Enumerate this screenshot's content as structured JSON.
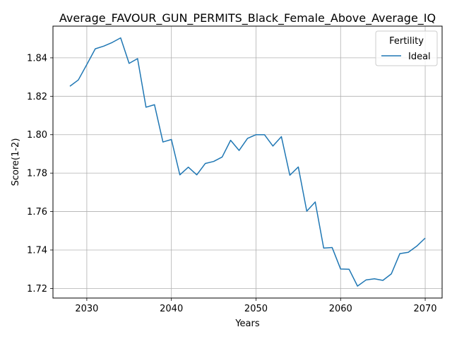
{
  "chart_data": {
    "type": "line",
    "title": "Average_FAVOUR_GUN_PERMITS_Black_Female_Above_Average_IQ",
    "xlabel": "Years",
    "ylabel": "Score(1-2)",
    "xlim": [
      2026,
      2072
    ],
    "ylim": [
      1.715,
      1.8565
    ],
    "xticks": [
      2030,
      2040,
      2050,
      2060,
      2070
    ],
    "yticks": [
      1.72,
      1.74,
      1.76,
      1.78,
      1.8,
      1.82,
      1.84
    ],
    "ytick_labels": [
      "1.72",
      "1.74",
      "1.76",
      "1.78",
      "1.80",
      "1.82",
      "1.84"
    ],
    "grid": true,
    "legend": {
      "title": "Fertility",
      "placement": "top-right"
    },
    "series": [
      {
        "name": "Ideal",
        "color": "#1f77b4",
        "x": [
          2028,
          2029,
          2030,
          2031,
          2032,
          2033,
          2034,
          2035,
          2036,
          2037,
          2038,
          2039,
          2040,
          2041,
          2042,
          2043,
          2044,
          2045,
          2046,
          2047,
          2048,
          2049,
          2050,
          2051,
          2052,
          2053,
          2054,
          2055,
          2056,
          2057,
          2058,
          2059,
          2060,
          2061,
          2062,
          2063,
          2064,
          2065,
          2066,
          2067,
          2068,
          2069,
          2070
        ],
        "y": [
          1.8252,
          1.8285,
          1.8365,
          1.8447,
          1.8461,
          1.848,
          1.8504,
          1.8371,
          1.8396,
          1.8143,
          1.8156,
          1.7962,
          1.7975,
          1.7791,
          1.7831,
          1.7791,
          1.785,
          1.7861,
          1.7884,
          1.7971,
          1.7918,
          1.7981,
          1.8,
          1.8,
          1.7941,
          1.799,
          1.7789,
          1.7832,
          1.7602,
          1.765,
          1.741,
          1.7413,
          1.7301,
          1.73,
          1.7212,
          1.7244,
          1.725,
          1.7242,
          1.7276,
          1.7381,
          1.7388,
          1.742,
          1.7462
        ]
      }
    ]
  }
}
